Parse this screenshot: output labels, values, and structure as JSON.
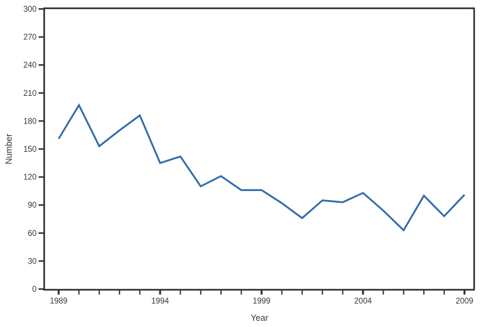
{
  "chart_data": {
    "type": "line",
    "title": "",
    "xlabel": "Year",
    "ylabel": "Number",
    "x": [
      1989,
      1990,
      1991,
      1992,
      1993,
      1994,
      1995,
      1996,
      1997,
      1998,
      1999,
      2000,
      2001,
      2002,
      2003,
      2004,
      2005,
      2006,
      2007,
      2008,
      2009
    ],
    "series": [
      {
        "name": "",
        "color": "#2e6ca8",
        "values": [
          161,
          197,
          153,
          170,
          186,
          135,
          142,
          110,
          121,
          106,
          106,
          92,
          76,
          95,
          93,
          103,
          84,
          63,
          100,
          78,
          101
        ]
      }
    ],
    "ylim": [
      0,
      300
    ],
    "ytick_step": 30,
    "y_tick_values": [
      0,
      30,
      60,
      90,
      120,
      150,
      180,
      210,
      240,
      270,
      300
    ],
    "y_tick_labels": [
      "0",
      "30",
      "60",
      "90",
      "120",
      "150",
      "180",
      "210",
      "240",
      "270",
      "300"
    ],
    "x_tick_labels": [
      {
        "year": 1989,
        "label": "1989"
      },
      {
        "year": 1994,
        "label": "1994"
      },
      {
        "year": 1999,
        "label": "1999"
      },
      {
        "year": 2004,
        "label": "2004"
      },
      {
        "year": 2009,
        "label": "2009"
      }
    ],
    "grid": false,
    "legend": false,
    "box": true
  },
  "colors": {
    "line": "#2e6ca8",
    "axis": "#332f30",
    "text": "#3a3637",
    "background": "#ffffff"
  }
}
